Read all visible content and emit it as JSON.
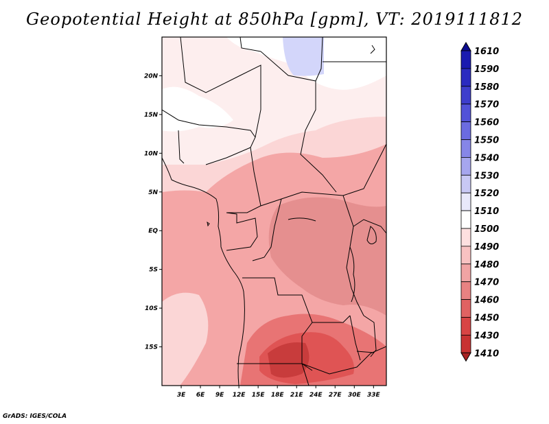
{
  "title": "Geopotential Height at 850hPa [gpm], VT: 2019111812",
  "credit": "GrADS: IGES/COLA",
  "map": {
    "lat_range": [
      -20,
      25
    ],
    "lon_range": [
      0,
      35
    ],
    "lat_ticks": [
      {
        "value": 20,
        "label": "20N"
      },
      {
        "value": 15,
        "label": "15N"
      },
      {
        "value": 10,
        "label": "10N"
      },
      {
        "value": 5,
        "label": "5N"
      },
      {
        "value": 0,
        "label": "EQ"
      },
      {
        "value": -5,
        "label": "5S"
      },
      {
        "value": -10,
        "label": "10S"
      },
      {
        "value": -15,
        "label": "15S"
      }
    ],
    "lon_ticks": [
      {
        "value": 3,
        "label": "3E"
      },
      {
        "value": 6,
        "label": "6E"
      },
      {
        "value": 9,
        "label": "9E"
      },
      {
        "value": 12,
        "label": "12E"
      },
      {
        "value": 15,
        "label": "15E"
      },
      {
        "value": 18,
        "label": "18E"
      },
      {
        "value": 21,
        "label": "21E"
      },
      {
        "value": 24,
        "label": "24E"
      },
      {
        "value": 27,
        "label": "27E"
      },
      {
        "value": 30,
        "label": "30E"
      },
      {
        "value": 33,
        "label": "33E"
      }
    ]
  },
  "colorbar": {
    "labels": [
      "1610",
      "1590",
      "1580",
      "1570",
      "1560",
      "1550",
      "1540",
      "1530",
      "1520",
      "1510",
      "1500",
      "1490",
      "1480",
      "1470",
      "1460",
      "1450",
      "1430",
      "1410"
    ],
    "colors": [
      "#0c0c8f",
      "#1a1ab0",
      "#2b2bc0",
      "#3e3ecc",
      "#5252d8",
      "#6b6be0",
      "#8686e8",
      "#a6a6ee",
      "#c8c8f4",
      "#e8e8fa",
      "#ffffff",
      "#fde0e0",
      "#f8c2c2",
      "#f0a4a4",
      "#e88282",
      "#e06262",
      "#d84444",
      "#c83232",
      "#a82222"
    ]
  }
}
